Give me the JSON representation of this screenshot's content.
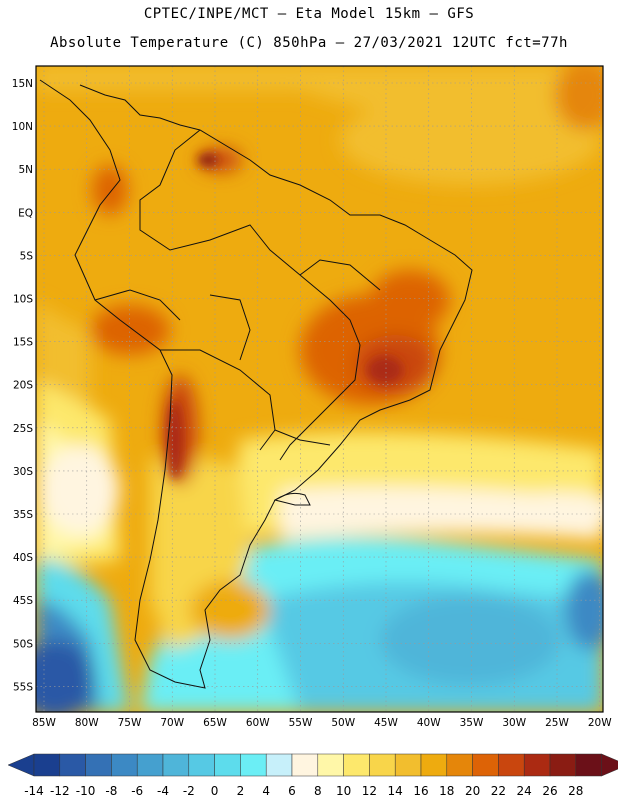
{
  "header": {
    "line1": "CPTEC/INPE/MCT –  Eta Model 15km – GFS",
    "line2": "Absolute Temperature (C) 850hPa – 27/03/2021 12UTC fct=77h"
  },
  "map": {
    "lat_labels": [
      "15N",
      "10N",
      "5N",
      "EQ",
      "5S",
      "10S",
      "15S",
      "20S",
      "25S",
      "30S",
      "35S",
      "40S",
      "45S",
      "50S",
      "55S"
    ],
    "lon_labels": [
      "85W",
      "80W",
      "75W",
      "70W",
      "65W",
      "60W",
      "55W",
      "50W",
      "45W",
      "40W",
      "35W",
      "30W",
      "25W",
      "20W"
    ]
  },
  "colorbar": {
    "labels": [
      "-14",
      "-12",
      "-10",
      "-8",
      "-6",
      "-4",
      "-2",
      "0",
      "2",
      "4",
      "6",
      "8",
      "10",
      "12",
      "14",
      "16",
      "18",
      "20",
      "22",
      "24",
      "26",
      "28"
    ],
    "colors": [
      "#1a3f8f",
      "#2a59a6",
      "#3471b5",
      "#3c89c4",
      "#45a0cf",
      "#4fb5d9",
      "#56c9e4",
      "#5ddcec",
      "#6beef5",
      "#c7f0fa",
      "#fff5e0",
      "#fff7a8",
      "#fde86c",
      "#f8d54a",
      "#f2be2e",
      "#eeab0f",
      "#e5860a",
      "#dd6306",
      "#c9460e",
      "#ab2a12",
      "#8a1c13",
      "#6b1018"
    ]
  }
}
